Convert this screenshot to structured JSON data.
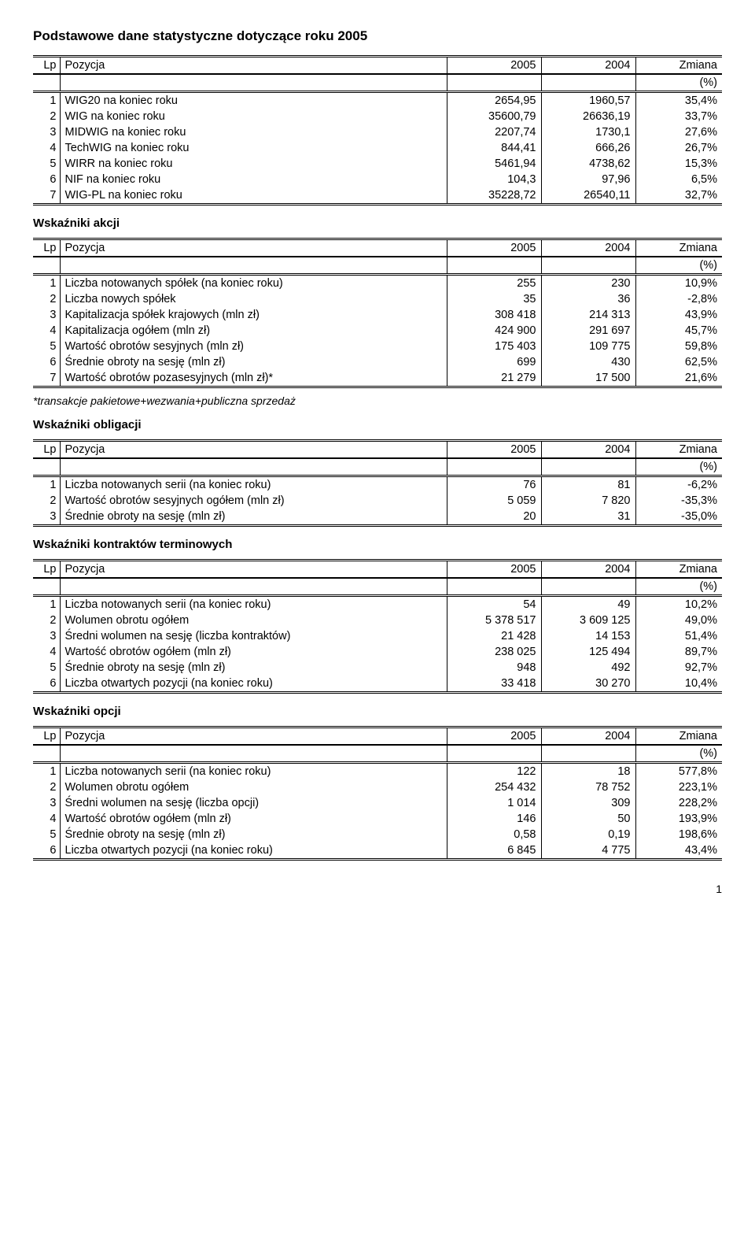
{
  "page_title": "Podstawowe dane statystyczne dotyczące roku 2005",
  "page_number": "1",
  "header": {
    "lp": "Lp",
    "pozycja": "Pozycja",
    "y2005": "2005",
    "y2004": "2004",
    "zmiana": "Zmiana",
    "pct": "(%)"
  },
  "tables": [
    {
      "heading": null,
      "rows": [
        [
          "1",
          "WIG20 na koniec roku",
          "2654,95",
          "1960,57",
          "35,4%"
        ],
        [
          "2",
          "WIG na koniec roku",
          "35600,79",
          "26636,19",
          "33,7%"
        ],
        [
          "3",
          "MIDWIG na koniec roku",
          "2207,74",
          "1730,1",
          "27,6%"
        ],
        [
          "4",
          "TechWIG na koniec roku",
          "844,41",
          "666,26",
          "26,7%"
        ],
        [
          "5",
          "WIRR na koniec roku",
          "5461,94",
          "4738,62",
          "15,3%"
        ],
        [
          "6",
          "NIF na koniec roku",
          "104,3",
          "97,96",
          "6,5%"
        ],
        [
          "7",
          "WIG-PL na koniec roku",
          "35228,72",
          "26540,11",
          "32,7%"
        ]
      ]
    },
    {
      "heading": "Wskaźniki akcji",
      "rows": [
        [
          "1",
          "Liczba notowanych spółek (na koniec roku)",
          "255",
          "230",
          "10,9%"
        ],
        [
          "2",
          "Liczba nowych spółek",
          "35",
          "36",
          "-2,8%"
        ],
        [
          "3",
          "Kapitalizacja spółek krajowych (mln zł)",
          "308 418",
          "214 313",
          "43,9%"
        ],
        [
          "4",
          "Kapitalizacja ogółem (mln zł)",
          "424 900",
          "291 697",
          "45,7%"
        ],
        [
          "5",
          "Wartość obrotów sesyjnych (mln zł)",
          "175 403",
          "109 775",
          "59,8%"
        ],
        [
          "6",
          "Średnie obroty na sesję (mln zł)",
          "699",
          "430",
          "62,5%"
        ],
        [
          "7",
          "Wartość obrotów pozasesyjnych (mln zł)*",
          "21 279",
          "17 500",
          "21,6%"
        ]
      ],
      "footnote": "*transakcje pakietowe+wezwania+publiczna sprzedaż"
    },
    {
      "heading": "Wskaźniki obligacji",
      "rows": [
        [
          "1",
          "Liczba notowanych serii (na koniec roku)",
          "76",
          "81",
          "-6,2%"
        ],
        [
          "2",
          "Wartość obrotów sesyjnych ogółem (mln zł)",
          "5 059",
          "7 820",
          "-35,3%"
        ],
        [
          "3",
          "Średnie obroty na sesję (mln zł)",
          "20",
          "31",
          "-35,0%"
        ]
      ]
    },
    {
      "heading": "Wskaźniki kontraktów terminowych",
      "rows": [
        [
          "1",
          "Liczba notowanych serii (na koniec roku)",
          "54",
          "49",
          "10,2%"
        ],
        [
          "2",
          "Wolumen obrotu ogółem",
          "5 378 517",
          "3 609 125",
          "49,0%"
        ],
        [
          "3",
          "Średni wolumen na sesję (liczba kontraktów)",
          "21 428",
          "14 153",
          "51,4%"
        ],
        [
          "4",
          "Wartość obrotów ogółem (mln zł)",
          "238 025",
          "125 494",
          "89,7%"
        ],
        [
          "5",
          "Średnie obroty na sesję (mln zł)",
          "948",
          "492",
          "92,7%"
        ],
        [
          "6",
          "Liczba otwartych pozycji (na koniec roku)",
          "33 418",
          "30 270",
          "10,4%"
        ]
      ]
    },
    {
      "heading": "Wskaźniki opcji",
      "rows": [
        [
          "1",
          "Liczba notowanych serii (na koniec roku)",
          "122",
          "18",
          "577,8%"
        ],
        [
          "2",
          "Wolumen obrotu ogółem",
          "254 432",
          "78 752",
          "223,1%"
        ],
        [
          "3",
          "Średni wolumen na sesję (liczba opcji)",
          "1 014",
          "309",
          "228,2%"
        ],
        [
          "4",
          "Wartość obrotów ogółem (mln zł)",
          "146",
          "50",
          "193,9%"
        ],
        [
          "5",
          "Średnie obroty na sesję (mln zł)",
          "0,58",
          "0,19",
          "198,6%"
        ],
        [
          "6",
          "Liczba otwartych pozycji (na koniec roku)",
          "6 845",
          "4 775",
          "43,4%"
        ]
      ]
    }
  ]
}
